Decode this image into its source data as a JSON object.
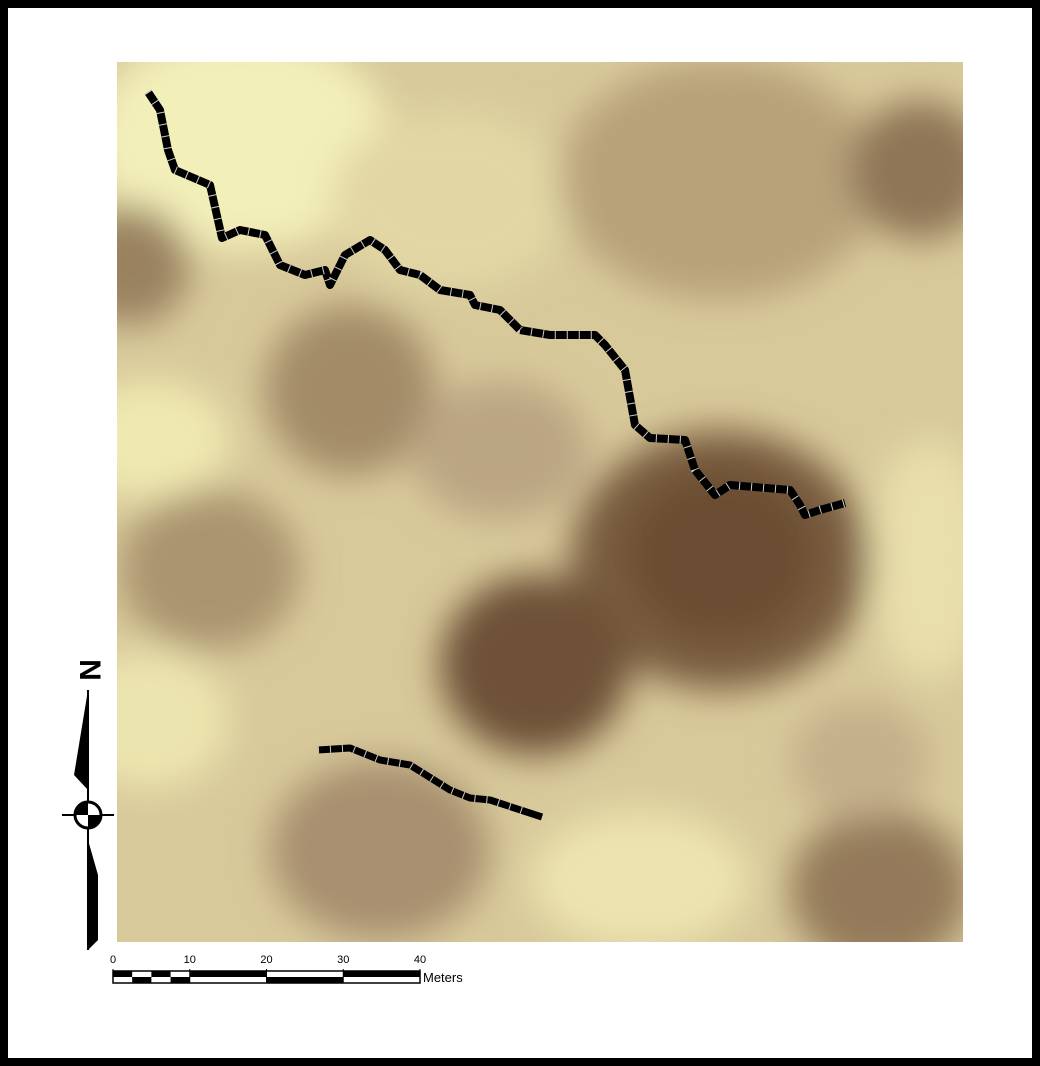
{
  "map": {
    "north_arrow": {
      "label": "N"
    },
    "scale_bar": {
      "ticks": [
        0,
        10,
        20,
        30,
        40
      ],
      "unit": "Meters"
    }
  }
}
